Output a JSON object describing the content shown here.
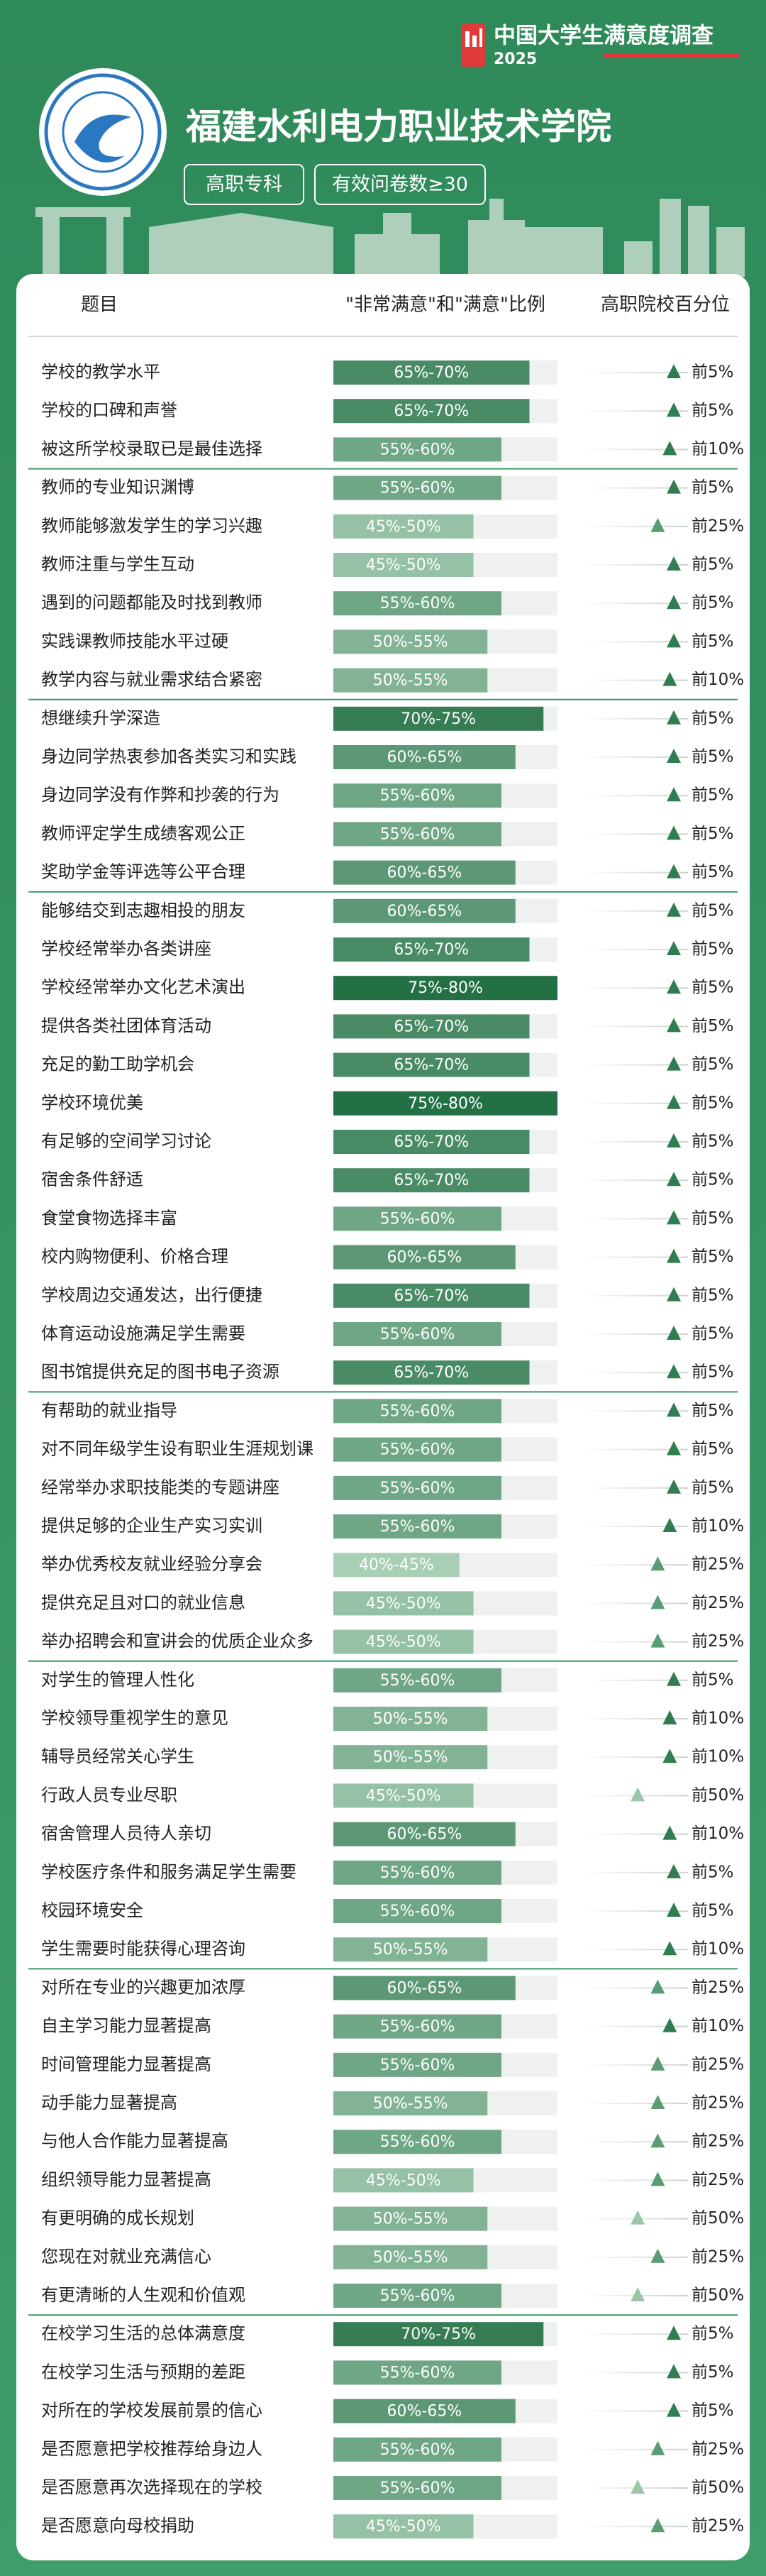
{
  "header": {
    "brand": "中国大学生满意度调查",
    "year": "2025",
    "school": "福建水利电力职业技术学院",
    "tags": [
      "高职专科",
      "有效问卷数≥30"
    ]
  },
  "table": {
    "columns": [
      "题目",
      "\"非常满意\"和\"满意\"比例",
      "高职院校百分位"
    ],
    "groups": [
      [
        {
          "item": "学校的教学水平",
          "range": [
            65,
            70
          ],
          "range_label": "65%-70%",
          "rank": 5,
          "rank_label": "前5%"
        },
        {
          "item": "学校的口碑和声誉",
          "range": [
            65,
            70
          ],
          "range_label": "65%-70%",
          "rank": 5,
          "rank_label": "前5%"
        },
        {
          "item": "被这所学校录取已是最佳选择",
          "range": [
            55,
            60
          ],
          "range_label": "55%-60%",
          "rank": 10,
          "rank_label": "前10%"
        }
      ],
      [
        {
          "item": "教师的专业知识渊博",
          "range": [
            55,
            60
          ],
          "range_label": "55%-60%",
          "rank": 5,
          "rank_label": "前5%"
        },
        {
          "item": "教师能够激发学生的学习兴趣",
          "range": [
            45,
            50
          ],
          "range_label": "45%-50%",
          "rank": 25,
          "rank_label": "前25%"
        },
        {
          "item": "教师注重与学生互动",
          "range": [
            45,
            50
          ],
          "range_label": "45%-50%",
          "rank": 5,
          "rank_label": "前5%"
        },
        {
          "item": "遇到的问题都能及时找到教师",
          "range": [
            55,
            60
          ],
          "range_label": "55%-60%",
          "rank": 5,
          "rank_label": "前5%"
        },
        {
          "item": "实践课教师技能水平过硬",
          "range": [
            50,
            55
          ],
          "range_label": "50%-55%",
          "rank": 5,
          "rank_label": "前5%"
        },
        {
          "item": "教学内容与就业需求结合紧密",
          "range": [
            50,
            55
          ],
          "range_label": "50%-55%",
          "rank": 10,
          "rank_label": "前10%"
        }
      ],
      [
        {
          "item": "想继续升学深造",
          "range": [
            70,
            75
          ],
          "range_label": "70%-75%",
          "rank": 5,
          "rank_label": "前5%"
        },
        {
          "item": "身边同学热衷参加各类实习和实践",
          "range": [
            60,
            65
          ],
          "range_label": "60%-65%",
          "rank": 5,
          "rank_label": "前5%"
        },
        {
          "item": "身边同学没有作弊和抄袭的行为",
          "range": [
            55,
            60
          ],
          "range_label": "55%-60%",
          "rank": 5,
          "rank_label": "前5%"
        },
        {
          "item": "教师评定学生成绩客观公正",
          "range": [
            55,
            60
          ],
          "range_label": "55%-60%",
          "rank": 5,
          "rank_label": "前5%"
        },
        {
          "item": "奖助学金等评选等公平合理",
          "range": [
            60,
            65
          ],
          "range_label": "60%-65%",
          "rank": 5,
          "rank_label": "前5%"
        }
      ],
      [
        {
          "item": "能够结交到志趣相投的朋友",
          "range": [
            60,
            65
          ],
          "range_label": "60%-65%",
          "rank": 5,
          "rank_label": "前5%"
        },
        {
          "item": "学校经常举办各类讲座",
          "range": [
            65,
            70
          ],
          "range_label": "65%-70%",
          "rank": 5,
          "rank_label": "前5%"
        },
        {
          "item": "学校经常举办文化艺术演出",
          "range": [
            75,
            80
          ],
          "range_label": "75%-80%",
          "rank": 5,
          "rank_label": "前5%"
        },
        {
          "item": "提供各类社团体育活动",
          "range": [
            65,
            70
          ],
          "range_label": "65%-70%",
          "rank": 5,
          "rank_label": "前5%"
        },
        {
          "item": "充足的勤工助学机会",
          "range": [
            65,
            70
          ],
          "range_label": "65%-70%",
          "rank": 5,
          "rank_label": "前5%"
        },
        {
          "item": "学校环境优美",
          "range": [
            75,
            80
          ],
          "range_label": "75%-80%",
          "rank": 5,
          "rank_label": "前5%"
        },
        {
          "item": "有足够的空间学习讨论",
          "range": [
            65,
            70
          ],
          "range_label": "65%-70%",
          "rank": 5,
          "rank_label": "前5%"
        },
        {
          "item": "宿舍条件舒适",
          "range": [
            65,
            70
          ],
          "range_label": "65%-70%",
          "rank": 5,
          "rank_label": "前5%"
        },
        {
          "item": "食堂食物选择丰富",
          "range": [
            55,
            60
          ],
          "range_label": "55%-60%",
          "rank": 5,
          "rank_label": "前5%"
        },
        {
          "item": "校内购物便利、价格合理",
          "range": [
            60,
            65
          ],
          "range_label": "60%-65%",
          "rank": 5,
          "rank_label": "前5%"
        },
        {
          "item": "学校周边交通发达，出行便捷",
          "range": [
            65,
            70
          ],
          "range_label": "65%-70%",
          "rank": 5,
          "rank_label": "前5%"
        },
        {
          "item": "体育运动设施满足学生需要",
          "range": [
            55,
            60
          ],
          "range_label": "55%-60%",
          "rank": 5,
          "rank_label": "前5%"
        },
        {
          "item": "图书馆提供充足的图书电子资源",
          "range": [
            65,
            70
          ],
          "range_label": "65%-70%",
          "rank": 5,
          "rank_label": "前5%"
        }
      ],
      [
        {
          "item": "有帮助的就业指导",
          "range": [
            55,
            60
          ],
          "range_label": "55%-60%",
          "rank": 5,
          "rank_label": "前5%"
        },
        {
          "item": "对不同年级学生设有职业生涯规划课",
          "range": [
            55,
            60
          ],
          "range_label": "55%-60%",
          "rank": 5,
          "rank_label": "前5%"
        },
        {
          "item": "经常举办求职技能类的专题讲座",
          "range": [
            55,
            60
          ],
          "range_label": "55%-60%",
          "rank": 5,
          "rank_label": "前5%"
        },
        {
          "item": "提供足够的企业生产实习实训",
          "range": [
            55,
            60
          ],
          "range_label": "55%-60%",
          "rank": 10,
          "rank_label": "前10%"
        },
        {
          "item": "举办优秀校友就业经验分享会",
          "range": [
            40,
            45
          ],
          "range_label": "40%-45%",
          "rank": 25,
          "rank_label": "前25%"
        },
        {
          "item": "提供充足且对口的就业信息",
          "range": [
            45,
            50
          ],
          "range_label": "45%-50%",
          "rank": 25,
          "rank_label": "前25%"
        },
        {
          "item": "举办招聘会和宣讲会的优质企业众多",
          "range": [
            45,
            50
          ],
          "range_label": "45%-50%",
          "rank": 25,
          "rank_label": "前25%"
        }
      ],
      [
        {
          "item": "对学生的管理人性化",
          "range": [
            55,
            60
          ],
          "range_label": "55%-60%",
          "rank": 5,
          "rank_label": "前5%"
        },
        {
          "item": "学校领导重视学生的意见",
          "range": [
            50,
            55
          ],
          "range_label": "50%-55%",
          "rank": 10,
          "rank_label": "前10%"
        },
        {
          "item": "辅导员经常关心学生",
          "range": [
            50,
            55
          ],
          "range_label": "50%-55%",
          "rank": 10,
          "rank_label": "前10%"
        },
        {
          "item": "行政人员专业尽职",
          "range": [
            45,
            50
          ],
          "range_label": "45%-50%",
          "rank": 50,
          "rank_label": "前50%"
        },
        {
          "item": "宿舍管理人员待人亲切",
          "range": [
            60,
            65
          ],
          "range_label": "60%-65%",
          "rank": 10,
          "rank_label": "前10%"
        },
        {
          "item": "学校医疗条件和服务满足学生需要",
          "range": [
            55,
            60
          ],
          "range_label": "55%-60%",
          "rank": 5,
          "rank_label": "前5%"
        },
        {
          "item": "校园环境安全",
          "range": [
            55,
            60
          ],
          "range_label": "55%-60%",
          "rank": 5,
          "rank_label": "前5%"
        },
        {
          "item": "学生需要时能获得心理咨询",
          "range": [
            50,
            55
          ],
          "range_label": "50%-55%",
          "rank": 10,
          "rank_label": "前10%"
        }
      ],
      [
        {
          "item": "对所在专业的兴趣更加浓厚",
          "range": [
            60,
            65
          ],
          "range_label": "60%-65%",
          "rank": 25,
          "rank_label": "前25%"
        },
        {
          "item": "自主学习能力显著提高",
          "range": [
            55,
            60
          ],
          "range_label": "55%-60%",
          "rank": 10,
          "rank_label": "前10%"
        },
        {
          "item": "时间管理能力显著提高",
          "range": [
            55,
            60
          ],
          "range_label": "55%-60%",
          "rank": 25,
          "rank_label": "前25%"
        },
        {
          "item": "动手能力显著提高",
          "range": [
            50,
            55
          ],
          "range_label": "50%-55%",
          "rank": 25,
          "rank_label": "前25%"
        },
        {
          "item": "与他人合作能力显著提高",
          "range": [
            55,
            60
          ],
          "range_label": "55%-60%",
          "rank": 25,
          "rank_label": "前25%"
        },
        {
          "item": "组织领导能力显著提高",
          "range": [
            45,
            50
          ],
          "range_label": "45%-50%",
          "rank": 25,
          "rank_label": "前25%"
        },
        {
          "item": "有更明确的成长规划",
          "range": [
            50,
            55
          ],
          "range_label": "50%-55%",
          "rank": 50,
          "rank_label": "前50%"
        },
        {
          "item": "您现在对就业充满信心",
          "range": [
            50,
            55
          ],
          "range_label": "50%-55%",
          "rank": 25,
          "rank_label": "前25%"
        },
        {
          "item": "有更清晰的人生观和价值观",
          "range": [
            55,
            60
          ],
          "range_label": "55%-60%",
          "rank": 50,
          "rank_label": "前50%"
        }
      ],
      [
        {
          "item": "在校学习生活的总体满意度",
          "range": [
            70,
            75
          ],
          "range_label": "70%-75%",
          "rank": 5,
          "rank_label": "前5%"
        },
        {
          "item": "在校学习生活与预期的差距",
          "range": [
            55,
            60
          ],
          "range_label": "55%-60%",
          "rank": 5,
          "rank_label": "前5%"
        },
        {
          "item": "对所在的学校发展前景的信心",
          "range": [
            60,
            65
          ],
          "range_label": "60%-65%",
          "rank": 5,
          "rank_label": "前5%"
        },
        {
          "item": "是否愿意把学校推荐给身边人",
          "range": [
            55,
            60
          ],
          "range_label": "55%-60%",
          "rank": 25,
          "rank_label": "前25%"
        },
        {
          "item": "是否愿意再次选择现在的学校",
          "range": [
            55,
            60
          ],
          "range_label": "55%-60%",
          "rank": 50,
          "rank_label": "前50%"
        },
        {
          "item": "是否愿意向母校捐助",
          "range": [
            45,
            50
          ],
          "range_label": "45%-50%",
          "rank": 25,
          "rank_label": "前25%"
        }
      ]
    ]
  }
}
